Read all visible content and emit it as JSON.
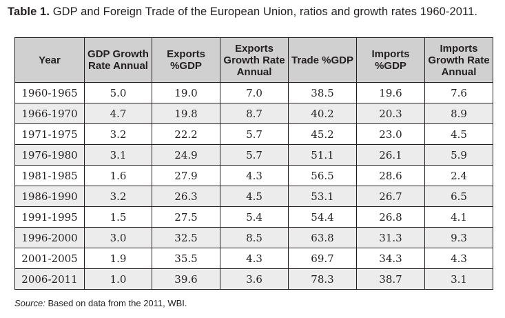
{
  "caption": {
    "label": "Table 1.",
    "text": "GDP and Foreign Trade of the European Union, ratios and growth rates 1960-2011."
  },
  "table": {
    "headers": [
      "Year",
      "GDP Growth Rate Annual",
      "Exports %GDP",
      "Exports Growth Rate Annual",
      "Trade %GDP",
      "Imports %GDP",
      "Imports Growth Rate Annual"
    ],
    "rows": [
      [
        "1960-1965",
        "5.0",
        "19.0",
        "7.0",
        "38.5",
        "19.6",
        "7.6"
      ],
      [
        "1966-1970",
        "4.7",
        "19.8",
        "8.7",
        "40.2",
        "20.3",
        "8.9"
      ],
      [
        "1971-1975",
        "3.2",
        "22.2",
        "5.7",
        "45.2",
        "23.0",
        "4.5"
      ],
      [
        "1976-1980",
        "3.1",
        "24.9",
        "5.7",
        "51.1",
        "26.1",
        "5.9"
      ],
      [
        "1981-1985",
        "1.6",
        "27.9",
        "4.3",
        "56.5",
        "28.6",
        "2.4"
      ],
      [
        "1986-1990",
        "3.2",
        "26.3",
        "4.5",
        "53.1",
        "26.7",
        "6.5"
      ],
      [
        "1991-1995",
        "1.5",
        "27.5",
        "5.4",
        "54.4",
        "26.8",
        "4.1"
      ],
      [
        "1996-2000",
        "3.0",
        "32.5",
        "8.5",
        "63.8",
        "31.3",
        "9.3"
      ],
      [
        "2001-2005",
        "1.9",
        "35.5",
        "4.3",
        "69.7",
        "34.3",
        "4.3"
      ],
      [
        "2006-2011",
        "1.0",
        "39.6",
        "3.6",
        "78.3",
        "38.7",
        "3.1"
      ]
    ]
  },
  "source": {
    "label": "Source:",
    "text": "Based on data from the 2011, WBI."
  }
}
